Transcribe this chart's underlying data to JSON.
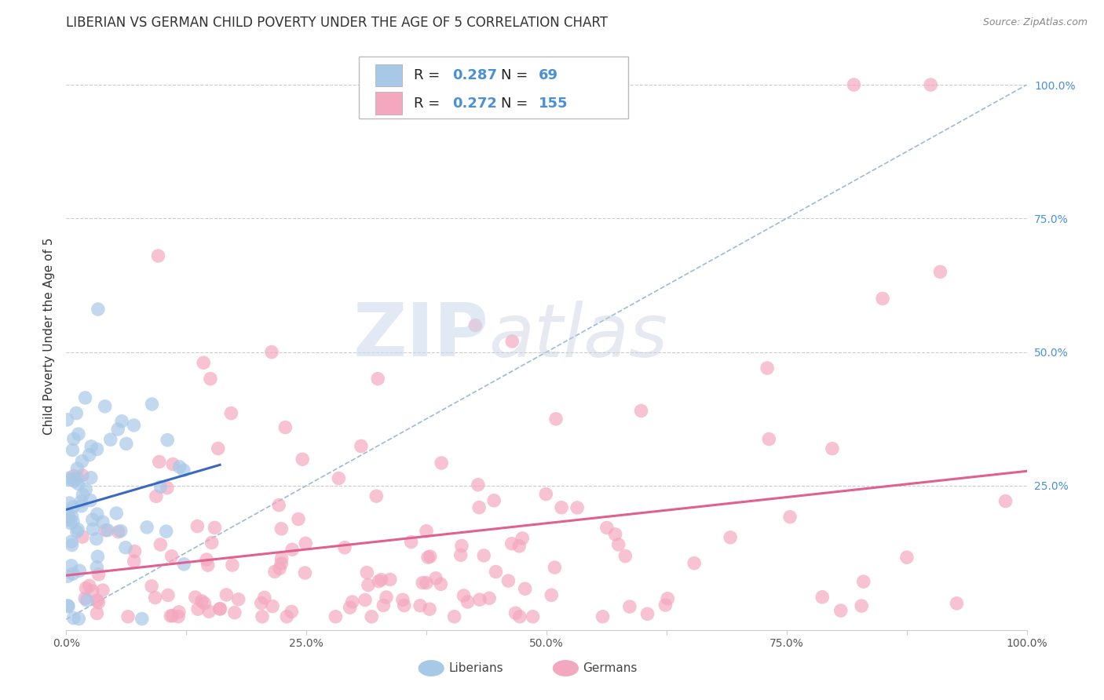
{
  "title": "LIBERIAN VS GERMAN CHILD POVERTY UNDER THE AGE OF 5 CORRELATION CHART",
  "source": "Source: ZipAtlas.com",
  "ylabel": "Child Poverty Under the Age of 5",
  "xlim": [
    0,
    1.0
  ],
  "ylim": [
    -0.02,
    1.08
  ],
  "xtick_labels": [
    "0.0%",
    "",
    "25.0%",
    "",
    "50.0%",
    "",
    "75.0%",
    "",
    "100.0%"
  ],
  "xtick_positions": [
    0.0,
    0.125,
    0.25,
    0.375,
    0.5,
    0.625,
    0.75,
    0.875,
    1.0
  ],
  "ytick_labels": [
    "25.0%",
    "50.0%",
    "75.0%",
    "100.0%"
  ],
  "ytick_positions": [
    0.25,
    0.5,
    0.75,
    1.0
  ],
  "liberian_color": "#a8c8e8",
  "german_color": "#f4a8c0",
  "liberian_R": 0.287,
  "liberian_N": 69,
  "german_R": 0.272,
  "german_N": 155,
  "liberian_line_color": "#3a6abf",
  "german_line_color": "#e06090",
  "diagonal_color": "#a0b8d8",
  "background_color": "#ffffff",
  "watermark_zip": "ZIP",
  "watermark_atlas": "atlas",
  "legend_blue_text": "Liberians",
  "legend_pink_text": "Germans",
  "title_fontsize": 12,
  "axis_label_fontsize": 11,
  "tick_fontsize": 10,
  "seed": 42
}
